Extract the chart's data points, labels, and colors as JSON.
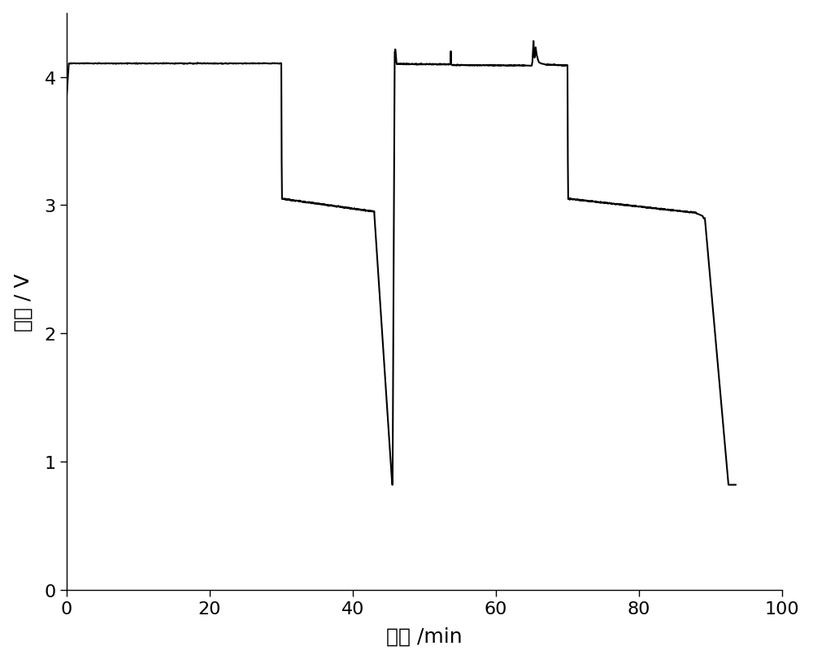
{
  "xlabel": "电流 /min",
  "ylabel": "电压 / V",
  "xlim": [
    0,
    100
  ],
  "ylim": [
    0,
    4.5
  ],
  "xticks": [
    0,
    20,
    40,
    60,
    80,
    100
  ],
  "yticks": [
    0,
    1,
    2,
    3,
    4
  ],
  "line_color": "#000000",
  "line_width": 1.5,
  "background_color": "#ffffff",
  "axis_fontsize": 18,
  "tick_fontsize": 16,
  "figsize": [
    10.0,
    8.12
  ],
  "dpi": 100
}
